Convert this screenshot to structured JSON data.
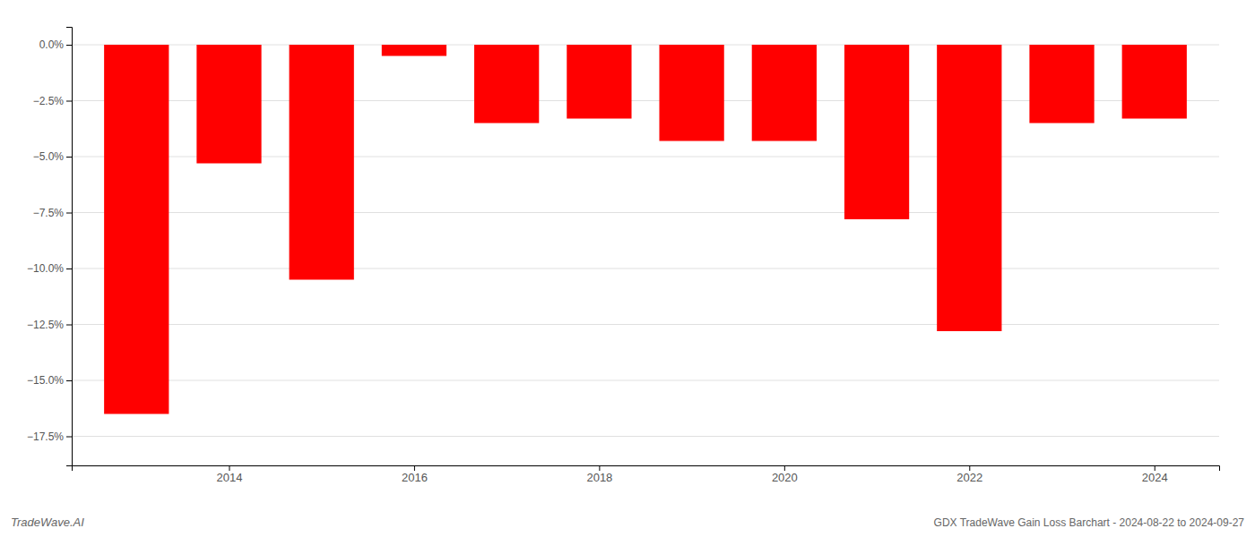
{
  "chart_data": {
    "type": "bar",
    "x": [
      2013,
      2014,
      2015,
      2016,
      2017,
      2018,
      2019,
      2020,
      2021,
      2022,
      2023,
      2024
    ],
    "values": [
      -16.5,
      -5.3,
      -10.5,
      -0.5,
      -3.5,
      -3.3,
      -4.3,
      -4.3,
      -7.8,
      -12.8,
      -3.5,
      -3.3
    ],
    "color": "#ff0000",
    "xlim": [
      2012.3,
      2024.7
    ],
    "xticks": [
      2014,
      2016,
      2018,
      2020,
      2022,
      2024
    ],
    "ylim": [
      -18.8,
      0.8
    ],
    "yticks": [
      {
        "value": 0.0,
        "label": "0.0%"
      },
      {
        "value": -2.5,
        "label": "−2.5%"
      },
      {
        "value": -5.0,
        "label": "−5.0%"
      },
      {
        "value": -7.5,
        "label": "−7.5%"
      },
      {
        "value": -10.0,
        "label": "−10.0%"
      },
      {
        "value": -12.5,
        "label": "−12.5%"
      },
      {
        "value": -15.0,
        "label": "−15.0%"
      },
      {
        "value": -17.5,
        "label": "−17.5%"
      }
    ],
    "grid": true,
    "annotations": [
      "TradeWave.AI",
      "GDX TradeWave Gain Loss Barchart - 2024-08-22 to 2024-09-27"
    ]
  }
}
